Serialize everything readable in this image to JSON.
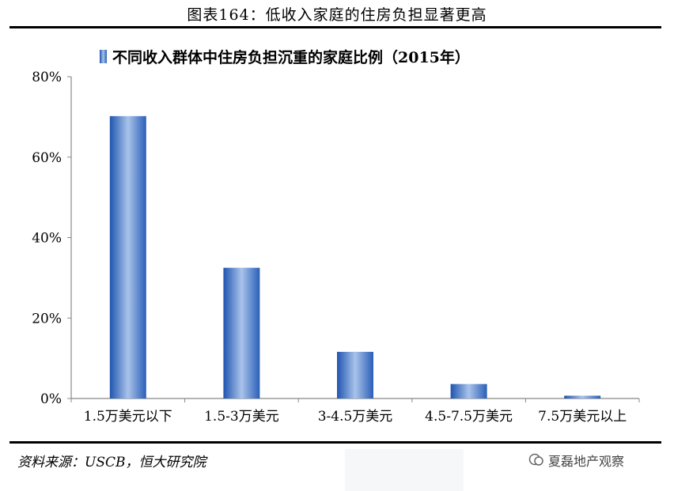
{
  "figure_title": "图表164：低收入家庭的住房负担显著更高",
  "source": "资料来源：USCB，恒大研究院",
  "watermark": "夏磊地产观察",
  "colors": {
    "bar": "#3a6fc4",
    "bar_light": "#a9c3ea",
    "axis": "#888888"
  },
  "chart_data": {
    "type": "bar",
    "title": "不同收入群体中住房负担沉重的家庭比例（2015年）",
    "categories": [
      "1.5万美元以下",
      "1.5-3万美元",
      "3-4.5万美元",
      "4.5-7.5万美元",
      "7.5万美元以上"
    ],
    "series": [
      {
        "name": "不同收入群体中住房负担沉重的家庭比例（2015年）",
        "values": [
          70.2,
          32.5,
          11.6,
          3.6,
          0.7
        ]
      }
    ],
    "ylim": [
      0,
      80
    ],
    "yticks": [
      "0%",
      "20%",
      "40%",
      "60%",
      "80%"
    ],
    "ytick_values": [
      0,
      20,
      40,
      60,
      80
    ],
    "grid": false,
    "legend": "top-left"
  }
}
